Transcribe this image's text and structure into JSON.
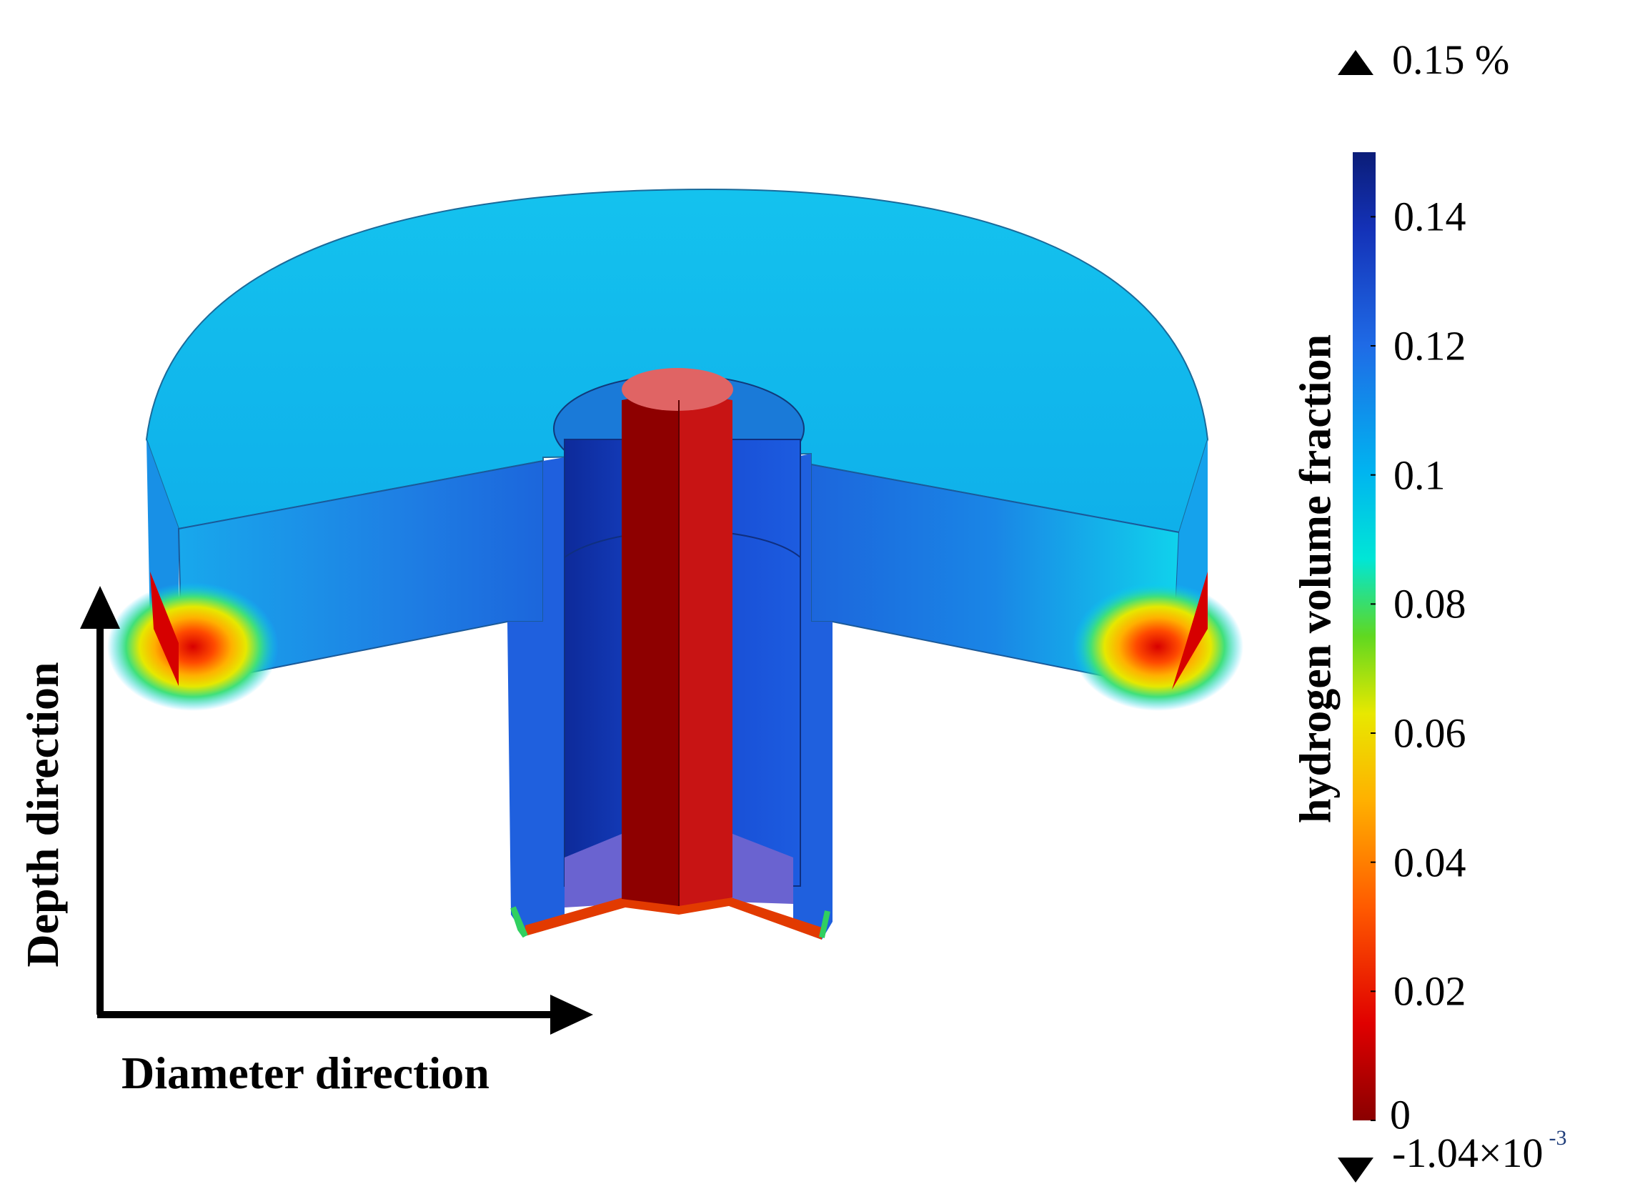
{
  "colorbar": {
    "title": "hydrogen volume fraction",
    "max_label": "0.15 %",
    "min_label_base": "-1.04×10",
    "min_label_exp": "-3",
    "ticks": [
      "0.14",
      "0.12",
      "0.1",
      "0.08",
      "0.06",
      "0.04",
      "0.02",
      "0"
    ],
    "tick_values": [
      0.14,
      0.12,
      0.1,
      0.08,
      0.06,
      0.04,
      0.02,
      0
    ],
    "range": [
      0,
      0.15
    ],
    "colormap": [
      "#7f0000",
      "#d40000",
      "#ff4000",
      "#ff9900",
      "#f0e000",
      "#6fd600",
      "#00e6d6",
      "#00a9f0",
      "#1a50e0",
      "#0a1f8f"
    ]
  },
  "axes": {
    "depth_label": "Depth direction",
    "diameter_label": "Diameter direction"
  },
  "icons": {
    "max_arrow": "triangle-up-icon",
    "min_arrow": "triangle-down-icon"
  }
}
